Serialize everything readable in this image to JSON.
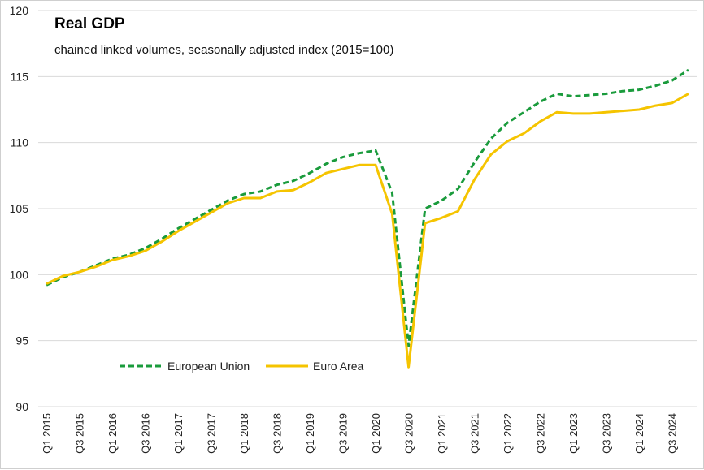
{
  "chart_data": {
    "type": "line",
    "title": "Real GDP",
    "subtitle": "chained linked volumes, seasonally adjusted index (2015=100)",
    "xlabel": "",
    "ylabel": "",
    "ylim": [
      90,
      120
    ],
    "yticks": [
      90,
      95,
      100,
      105,
      110,
      115,
      120
    ],
    "grid": true,
    "legend_position": "bottom-left",
    "categories": [
      "Q1 2015",
      "Q2 2015",
      "Q3 2015",
      "Q4 2015",
      "Q1 2016",
      "Q2 2016",
      "Q3 2016",
      "Q4 2016",
      "Q1 2017",
      "Q2 2017",
      "Q3 2017",
      "Q4 2017",
      "Q1 2018",
      "Q2 2018",
      "Q3 2018",
      "Q4 2018",
      "Q1 2019",
      "Q2 2019",
      "Q3 2019",
      "Q4 2019",
      "Q1 2020",
      "Q2 2020",
      "Q3 2020",
      "Q4 2020",
      "Q1 2021",
      "Q2 2021",
      "Q3 2021",
      "Q4 2021",
      "Q1 2022",
      "Q2 2022",
      "Q3 2022",
      "Q4 2022",
      "Q1 2023",
      "Q2 2023",
      "Q3 2023",
      "Q4 2023",
      "Q1 2024",
      "Q2 2024",
      "Q3 2024",
      "Q4 2024"
    ],
    "tick_labels": [
      "Q1 2015",
      "Q3 2015",
      "Q1 2016",
      "Q3 2016",
      "Q1 2017",
      "Q3 2017",
      "Q1 2018",
      "Q3 2018",
      "Q1 2019",
      "Q3 2019",
      "Q1 2020",
      "Q3 2020",
      "Q1 2021",
      "Q3 2021",
      "Q1 2022",
      "Q3 2022",
      "Q1 2023",
      "Q3 2023",
      "Q1 2024",
      "Q3 2024"
    ],
    "series": [
      {
        "name": "European Union",
        "color": "#1a9b3c",
        "style": "dashed",
        "values": [
          99.2,
          99.8,
          100.2,
          100.7,
          101.2,
          101.5,
          102.0,
          102.7,
          103.5,
          104.2,
          104.9,
          105.6,
          106.1,
          106.3,
          106.8,
          107.1,
          107.7,
          108.4,
          108.9,
          109.2,
          109.4,
          106.2,
          94.6,
          105.0,
          105.6,
          106.5,
          108.5,
          110.3,
          111.5,
          112.3,
          113.1,
          113.7,
          113.5,
          113.6,
          113.7,
          113.9,
          114.0,
          114.3,
          114.7,
          115.5
        ]
      },
      {
        "name": "Euro Area",
        "color": "#f5c400",
        "style": "solid",
        "values": [
          99.3,
          99.9,
          100.2,
          100.6,
          101.1,
          101.4,
          101.8,
          102.5,
          103.3,
          104.0,
          104.7,
          105.4,
          105.8,
          105.8,
          106.3,
          106.4,
          107.0,
          107.7,
          108.0,
          108.3,
          108.3,
          104.6,
          93.0,
          103.9,
          104.3,
          104.8,
          107.2,
          109.1,
          110.1,
          110.7,
          111.6,
          112.3,
          112.2,
          112.2,
          112.3,
          112.4,
          112.5,
          112.8,
          113.0,
          113.7
        ]
      }
    ]
  }
}
